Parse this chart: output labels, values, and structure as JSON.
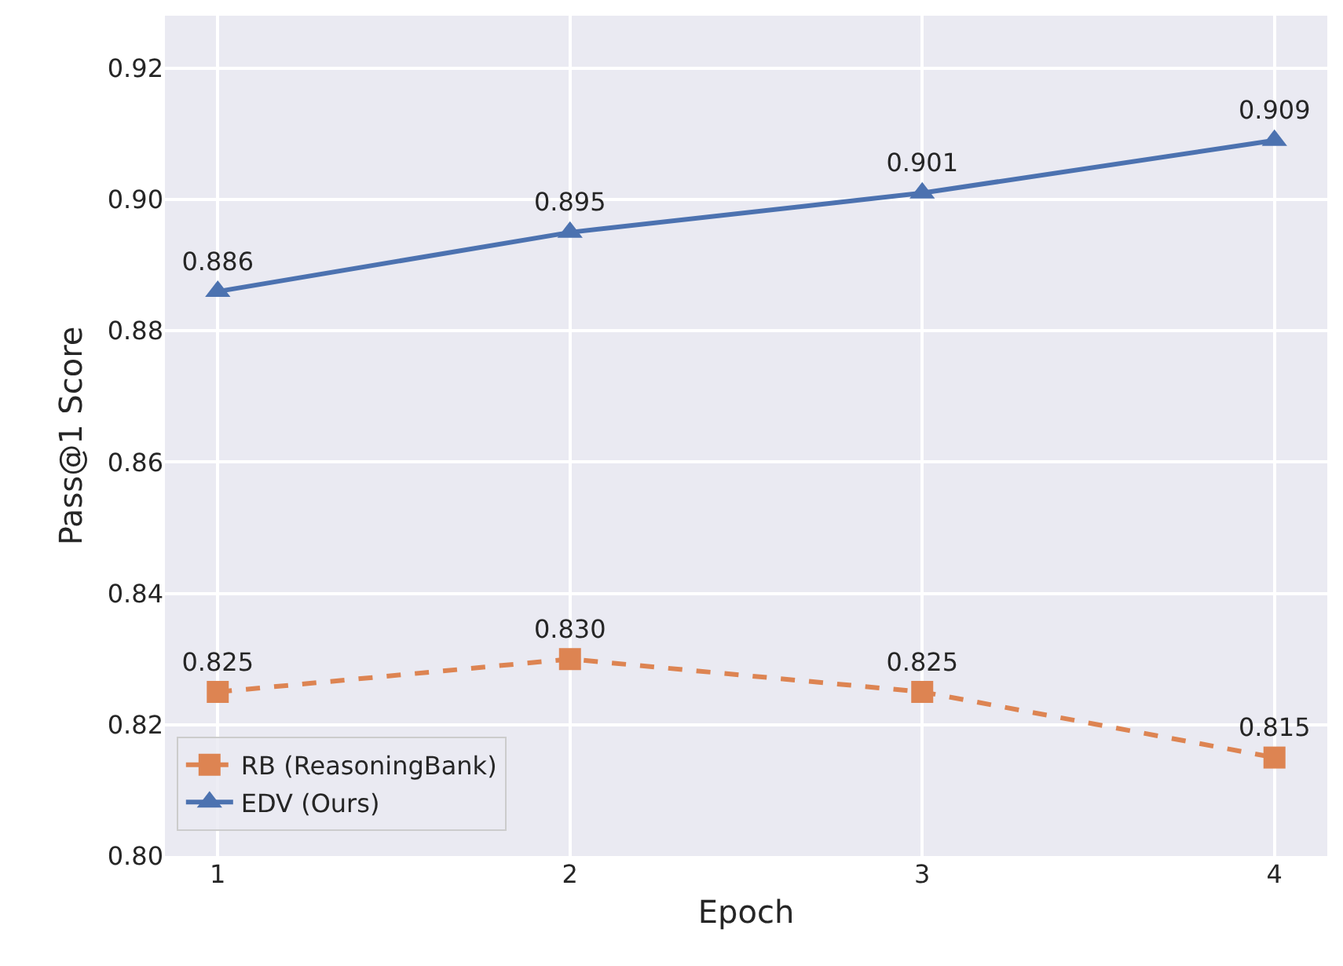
{
  "chart_data": {
    "type": "line",
    "xlabel": "Epoch",
    "ylabel": "Pass@1 Score",
    "x": [
      1,
      2,
      3,
      4
    ],
    "series": [
      {
        "name": "RB (ReasoningBank)",
        "color": "#dd8452",
        "values": [
          0.825,
          0.83,
          0.825,
          0.815
        ],
        "value_labels": [
          "0.825",
          "0.830",
          "0.825",
          "0.815"
        ],
        "marker": "square",
        "line_style": "dashed"
      },
      {
        "name": "EDV (Ours)",
        "color": "#4c72b0",
        "values": [
          0.886,
          0.895,
          0.901,
          0.909
        ],
        "value_labels": [
          "0.886",
          "0.895",
          "0.901",
          "0.909"
        ],
        "marker": "triangle",
        "line_style": "solid"
      }
    ],
    "xlim": [
      0.85,
      4.15
    ],
    "xticks": [
      1,
      2,
      3,
      4
    ],
    "ylim": [
      0.8,
      0.928
    ],
    "yticks": [
      {
        "value": 0.8,
        "label": "0.80"
      },
      {
        "value": 0.82,
        "label": "0.82"
      },
      {
        "value": 0.84,
        "label": "0.84"
      },
      {
        "value": 0.86,
        "label": "0.86"
      },
      {
        "value": 0.88,
        "label": "0.88"
      },
      {
        "value": 0.9,
        "label": "0.90"
      },
      {
        "value": 0.92,
        "label": "0.92"
      }
    ],
    "grid": true,
    "legend": "bottom left"
  }
}
